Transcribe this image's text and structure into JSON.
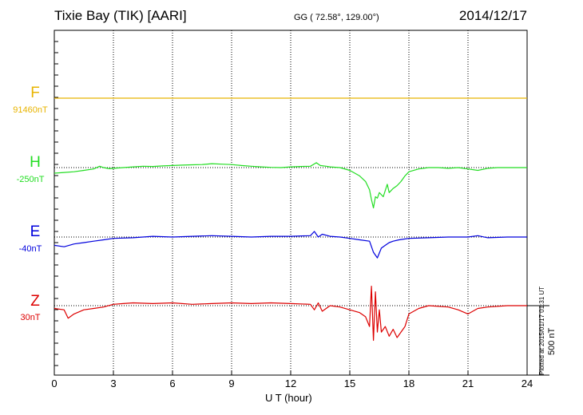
{
  "header": {
    "station": "Tixie Bay (TIK)  [AARI]",
    "coords": "GG ( 72.58°, 129.00°)",
    "date": "2014/12/17"
  },
  "footer": {
    "plotted": "Plotted at 2015/01/17 01:31  UT"
  },
  "chart_data": {
    "type": "line",
    "xlabel": "U T (hour)",
    "xlim": [
      0,
      24
    ],
    "xticks": [
      "0",
      "3",
      "6",
      "9",
      "12",
      "15",
      "18",
      "21",
      "24"
    ],
    "scale_bar": {
      "value": 500,
      "label": "500 nT"
    },
    "grid": true,
    "colors": {
      "F": "#e8b400",
      "H": "#22dd22",
      "E": "#0000dd",
      "Z": "#dd0000"
    },
    "series": [
      {
        "name": "F",
        "baseline": "91460nT",
        "x": [
          0,
          24
        ],
        "y": [
          0,
          0
        ]
      },
      {
        "name": "H",
        "baseline": "-250nT",
        "x": [
          0,
          0.5,
          1,
          1.5,
          2,
          2.3,
          2.5,
          2.8,
          3,
          3.5,
          4,
          4.5,
          5,
          5.5,
          6,
          6.5,
          7,
          7.5,
          8,
          8.5,
          9,
          9.5,
          10,
          10.5,
          11,
          11.5,
          12,
          12.5,
          13,
          13.3,
          13.5,
          13.8,
          14,
          14.5,
          15,
          15.5,
          15.8,
          16,
          16.1,
          16.2,
          16.3,
          16.4,
          16.5,
          16.7,
          16.9,
          17,
          17.2,
          17.4,
          17.6,
          17.8,
          18,
          18.5,
          19,
          19.5,
          20,
          20.5,
          21,
          21.5,
          22,
          22.5,
          23,
          23.5,
          24
        ],
        "y": [
          -40,
          -35,
          -30,
          -20,
          -10,
          10,
          0,
          -8,
          -5,
          0,
          5,
          10,
          8,
          12,
          15,
          18,
          20,
          22,
          28,
          25,
          22,
          15,
          10,
          5,
          2,
          0,
          5,
          8,
          10,
          35,
          15,
          10,
          5,
          0,
          -20,
          -60,
          -100,
          -160,
          -230,
          -290,
          -210,
          -220,
          -180,
          -210,
          -120,
          -180,
          -150,
          -130,
          -100,
          -60,
          -30,
          -10,
          0,
          0,
          -5,
          0,
          -10,
          -20,
          -5,
          0,
          0,
          0,
          0
        ]
      },
      {
        "name": "E",
        "baseline": "-40nT",
        "x": [
          0,
          0.5,
          1,
          1.5,
          2,
          2.5,
          3,
          4,
          5,
          6,
          7,
          8,
          9,
          10,
          11,
          12,
          13,
          13.2,
          13.4,
          13.6,
          14,
          14.5,
          15,
          15.5,
          16,
          16.2,
          16.4,
          16.6,
          16.8,
          17,
          17.2,
          17.5,
          18,
          19,
          20,
          21,
          21.5,
          22,
          23,
          24
        ],
        "y": [
          -60,
          -70,
          -50,
          -40,
          -30,
          -20,
          -10,
          -5,
          5,
          0,
          5,
          10,
          5,
          0,
          5,
          5,
          10,
          40,
          0,
          20,
          5,
          0,
          -10,
          -20,
          -30,
          -110,
          -150,
          -80,
          -60,
          -40,
          -30,
          -20,
          -10,
          -5,
          0,
          0,
          10,
          -5,
          0,
          0
        ]
      },
      {
        "name": "Z",
        "baseline": "30nT",
        "x": [
          0,
          0.5,
          0.7,
          1,
          1.5,
          2,
          2.5,
          3,
          3.5,
          4,
          5,
          6,
          7,
          8,
          9,
          10,
          11,
          12,
          13,
          13.2,
          13.4,
          13.6,
          14,
          14.5,
          15,
          15.5,
          15.8,
          16,
          16.1,
          16.2,
          16.3,
          16.4,
          16.5,
          16.6,
          16.8,
          17,
          17.2,
          17.4,
          17.6,
          17.8,
          18,
          18.5,
          19,
          20,
          20.5,
          21,
          21.5,
          22,
          23,
          24
        ],
        "y": [
          -20,
          -30,
          -90,
          -60,
          -30,
          -20,
          -10,
          10,
          15,
          20,
          15,
          20,
          10,
          15,
          20,
          15,
          20,
          15,
          10,
          -30,
          20,
          -40,
          0,
          -10,
          -30,
          -50,
          -80,
          -150,
          140,
          -250,
          100,
          -190,
          -30,
          -190,
          -150,
          -220,
          -170,
          -230,
          -190,
          -150,
          -60,
          -20,
          0,
          -10,
          -30,
          -60,
          -20,
          -10,
          0,
          0
        ]
      }
    ]
  }
}
